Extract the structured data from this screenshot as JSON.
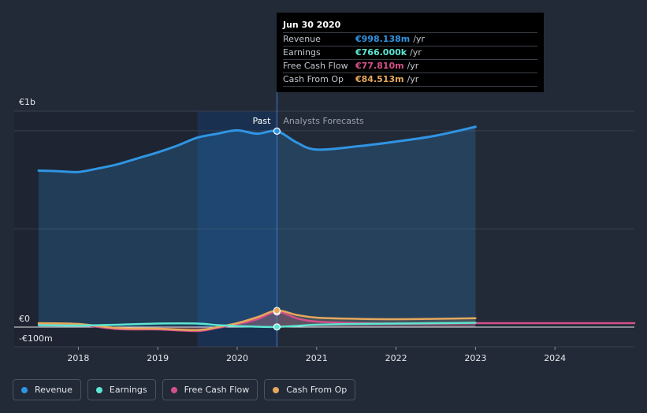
{
  "chart_data": {
    "type": "line",
    "x_ticks": [
      "2018",
      "2019",
      "2020",
      "2021",
      "2022",
      "2023",
      "2024"
    ],
    "y_ticks": [
      {
        "label": "€1b",
        "value": 1100
      },
      {
        "label": "€0",
        "value": 0
      },
      {
        "label": "-€100m",
        "value": -100
      }
    ],
    "ylim": [
      -100,
      1100
    ],
    "xlim": [
      2017.5,
      2025.0
    ],
    "past_label": "Past",
    "forecast_label": "Analysts Forecasts",
    "divider_x": 2020.5,
    "highlight_range": [
      2019.5,
      2020.5
    ],
    "series": [
      {
        "name": "Revenue",
        "color": "#2f95e3",
        "points": [
          [
            2017.5,
            797
          ],
          [
            2017.75,
            794
          ],
          [
            2018.0,
            790
          ],
          [
            2018.25,
            808
          ],
          [
            2018.5,
            830
          ],
          [
            2018.75,
            860
          ],
          [
            2019.0,
            890
          ],
          [
            2019.25,
            925
          ],
          [
            2019.5,
            965
          ],
          [
            2019.75,
            985
          ],
          [
            2020.0,
            1002
          ],
          [
            2020.25,
            985
          ],
          [
            2020.5,
            998
          ],
          [
            2020.75,
            940
          ],
          [
            2021.0,
            904
          ],
          [
            2021.5,
            920
          ],
          [
            2022.0,
            945
          ],
          [
            2022.5,
            975
          ],
          [
            2023.0,
            1020
          ]
        ]
      },
      {
        "name": "Earnings",
        "color": "#5de6d3",
        "points": [
          [
            2017.5,
            10
          ],
          [
            2018.0,
            8
          ],
          [
            2018.5,
            12
          ],
          [
            2019.0,
            18
          ],
          [
            2019.5,
            18
          ],
          [
            2019.75,
            10
          ],
          [
            2020.0,
            5
          ],
          [
            2020.25,
            2
          ],
          [
            2020.5,
            0.766
          ],
          [
            2020.75,
            6
          ],
          [
            2021.0,
            12
          ],
          [
            2021.5,
            16
          ],
          [
            2022.0,
            18
          ],
          [
            2022.5,
            20
          ],
          [
            2023.0,
            22
          ]
        ]
      },
      {
        "name": "Free Cash Flow",
        "color": "#d5508a",
        "points": [
          [
            2017.5,
            16
          ],
          [
            2018.0,
            12
          ],
          [
            2018.5,
            -10
          ],
          [
            2019.0,
            -12
          ],
          [
            2019.5,
            -20
          ],
          [
            2019.75,
            -4
          ],
          [
            2020.0,
            15
          ],
          [
            2020.25,
            40
          ],
          [
            2020.5,
            77.81
          ],
          [
            2020.75,
            45
          ],
          [
            2021.0,
            28
          ],
          [
            2021.5,
            20
          ],
          [
            2022.0,
            18
          ],
          [
            2022.5,
            18
          ],
          [
            2023.0,
            20
          ],
          [
            2024.0,
            20
          ],
          [
            2025.0,
            20
          ]
        ]
      },
      {
        "name": "Cash From Op",
        "color": "#e5a85c",
        "points": [
          [
            2017.5,
            20
          ],
          [
            2018.0,
            16
          ],
          [
            2018.5,
            -5
          ],
          [
            2019.0,
            -8
          ],
          [
            2019.5,
            -15
          ],
          [
            2019.75,
            0
          ],
          [
            2020.0,
            20
          ],
          [
            2020.25,
            50
          ],
          [
            2020.5,
            84.513
          ],
          [
            2020.75,
            62
          ],
          [
            2021.0,
            48
          ],
          [
            2021.5,
            42
          ],
          [
            2022.0,
            40
          ],
          [
            2022.5,
            42
          ],
          [
            2023.0,
            45
          ]
        ]
      }
    ]
  },
  "tooltip": {
    "date": "Jun 30 2020",
    "rows": [
      {
        "label": "Revenue",
        "value": "€998.138m",
        "unit": "/yr",
        "color": "#2f95e3"
      },
      {
        "label": "Earnings",
        "value": "€766.000k",
        "unit": "/yr",
        "color": "#5de6d3"
      },
      {
        "label": "Free Cash Flow",
        "value": "€77.810m",
        "unit": "/yr",
        "color": "#d5508a"
      },
      {
        "label": "Cash From Op",
        "value": "€84.513m",
        "unit": "/yr",
        "color": "#e5a85c"
      }
    ]
  },
  "legend": [
    {
      "label": "Revenue",
      "color": "#2f95e3"
    },
    {
      "label": "Earnings",
      "color": "#5de6d3"
    },
    {
      "label": "Free Cash Flow",
      "color": "#d5508a"
    },
    {
      "label": "Cash From Op",
      "color": "#e5a85c"
    }
  ]
}
